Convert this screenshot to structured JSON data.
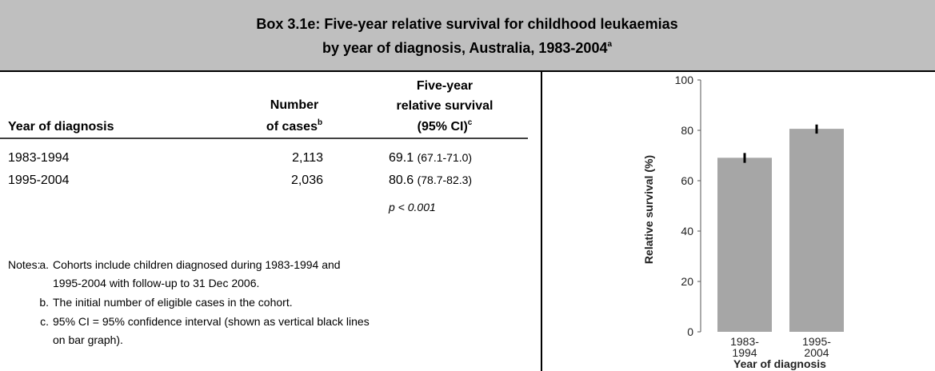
{
  "header": {
    "title_line1": "Box 3.1e: Five-year relative survival for childhood leukaemias",
    "title_line2": "by year of diagnosis, Australia, 1983-2004",
    "title_sup": "a"
  },
  "table": {
    "headers": [
      {
        "lines": [
          "Year of diagnosis"
        ]
      },
      {
        "lines": [
          "Number",
          "of cases"
        ],
        "sup": "b"
      },
      {
        "lines": [
          "Five-year",
          "relative survival",
          "(95% CI)"
        ],
        "sup": "c"
      }
    ],
    "rows": [
      [
        "1983-1994",
        "2,113",
        "69.1",
        "(67.1-71.0)"
      ],
      [
        "1995-2004",
        "2,036",
        "80.6",
        "(78.7-82.3)"
      ]
    ],
    "p_value": "p < 0.001"
  },
  "notes": {
    "label": "Notes:",
    "items": [
      {
        "marker": "a.",
        "lines": [
          "Cohorts include children diagnosed during 1983-1994 and",
          "1995-2004 with follow-up to 31 Dec 2006."
        ]
      },
      {
        "marker": "b.",
        "lines": [
          "The initial number of eligible cases in the cohort."
        ]
      },
      {
        "marker": "c.",
        "lines": [
          "95% CI = 95% confidence interval (shown as vertical black lines",
          "on bar graph)."
        ]
      }
    ]
  },
  "chart_data": {
    "type": "bar",
    "ylabel": "Relative survival (%)",
    "xlabel": "Year of diagnosis",
    "categories": [
      "1983-1994",
      "1995-2004"
    ],
    "values": [
      69.1,
      80.6
    ],
    "ci_low": [
      67.1,
      78.7
    ],
    "ci_high": [
      71.0,
      82.3
    ],
    "color": "#a6a6a6",
    "error_color": "#000000",
    "ylim": [
      0,
      100
    ],
    "yticks": [
      0,
      20,
      40,
      60,
      80,
      100
    ]
  }
}
